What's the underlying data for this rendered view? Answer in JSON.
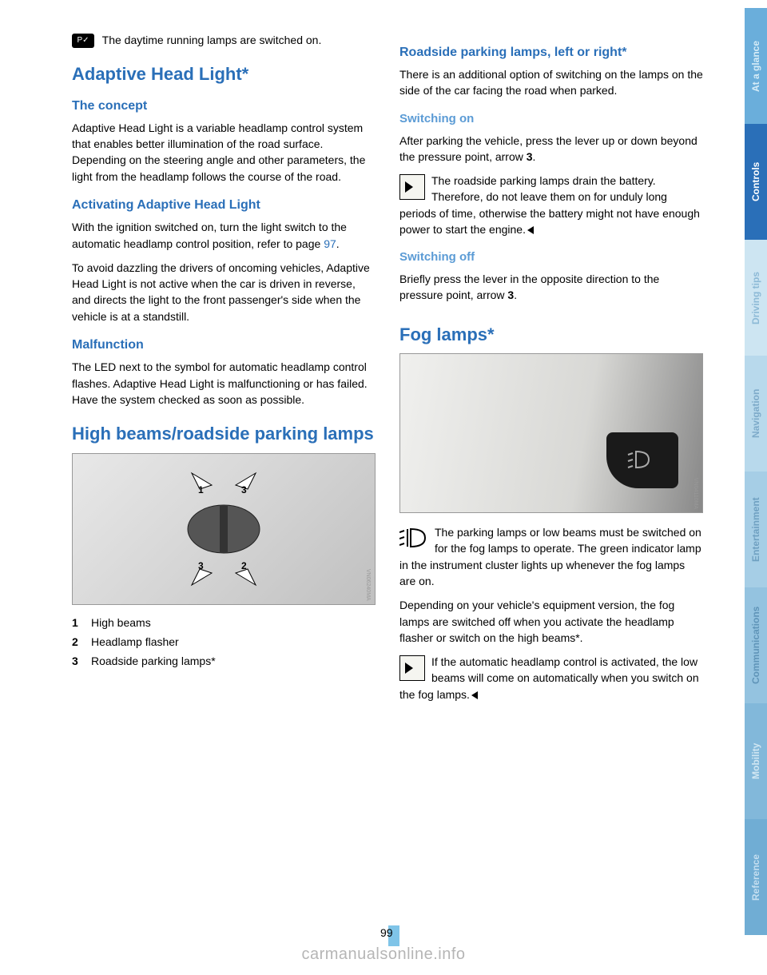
{
  "column_left": {
    "intro_text": "The daytime running lamps are switched on.",
    "heading_adaptive": "Adaptive Head Light*",
    "sub_concept": "The concept",
    "concept_text": "Adaptive Head Light is a variable headlamp control system that enables better illumination of the road surface. Depending on the steering angle and other parameters, the light from the headlamp follows the course of the road.",
    "sub_activating": "Activating Adaptive Head Light",
    "activating_text1": "With the ignition switched on, turn the light switch to the automatic headlamp control position, refer to page ",
    "page_ref": "97",
    "activating_text2": "To avoid dazzling the drivers of oncoming vehicles, Adaptive Head Light is not active when the car is driven in reverse, and directs the light to the front passenger's side when the vehicle is at a standstill.",
    "sub_malfunction": "Malfunction",
    "malfunction_text": "The LED next to the symbol for automatic headlamp control flashes. Adaptive Head Light is malfunctioning or has failed. Have the system checked as soon as possible.",
    "heading_highbeams": "High beams/roadside parking lamps",
    "list": {
      "item1": {
        "num": "1",
        "label": "High beams"
      },
      "item2": {
        "num": "2",
        "label": "Headlamp flasher"
      },
      "item3": {
        "num": "3",
        "label": "Roadside parking lamps*"
      }
    }
  },
  "column_right": {
    "heading_roadside": "Roadside parking lamps, left or right*",
    "roadside_text": "There is an additional option of switching on the lamps on the side of the car facing the road when parked.",
    "sub_switchon": "Switching on",
    "switchon_text1": "After parking the vehicle, press the lever up or down beyond the pressure point, arrow ",
    "switchon_arrow": "3",
    "switchon_warning": "The roadside parking lamps drain the battery. Therefore, do not leave them on for unduly long periods of time, otherwise the battery might not have enough power to start the engine.",
    "sub_switchoff": "Switching off",
    "switchoff_text": "Briefly press the lever in the opposite direction to the pressure point, arrow ",
    "switchoff_arrow": "3",
    "heading_fog": "Fog lamps*",
    "fog_text1": "The parking lamps or low beams must be switched on for the fog lamps to operate. The green indicator lamp in the instrument cluster lights up whenever the fog lamps are on.",
    "fog_text2": "Depending on your vehicle's equipment version, the fog lamps are switched off when you activate the headlamp flasher or switch on the high beams*.",
    "fog_warning": "If the automatic headlamp control is activated, the low beams will come on automatically when you switch on the fog lamps."
  },
  "sidebar": {
    "tabs": [
      {
        "label": "At a glance",
        "bg": "#6aaedb",
        "fg": "#d6ecf7"
      },
      {
        "label": "Controls",
        "bg": "#2a6fb8",
        "fg": "#ffffff"
      },
      {
        "label": "Driving tips",
        "bg": "#cde5f2",
        "fg": "#8cb9d6"
      },
      {
        "label": "Navigation",
        "bg": "#b8d9ec",
        "fg": "#7daac9"
      },
      {
        "label": "Entertainment",
        "bg": "#a6cee6",
        "fg": "#6fa0c1"
      },
      {
        "label": "Communications",
        "bg": "#94c3e0",
        "fg": "#5f94b8"
      },
      {
        "label": "Mobility",
        "bg": "#82b8da",
        "fg": "#d0e6f2"
      },
      {
        "label": "Reference",
        "bg": "#70add4",
        "fg": "#c4def0"
      }
    ]
  },
  "page_number": "99",
  "watermark": "carmanualsonline.info",
  "colors": {
    "heading_blue": "#2a6fb8",
    "sub_blue": "#5b9bd5",
    "page_accent": "#7fc4e8"
  }
}
